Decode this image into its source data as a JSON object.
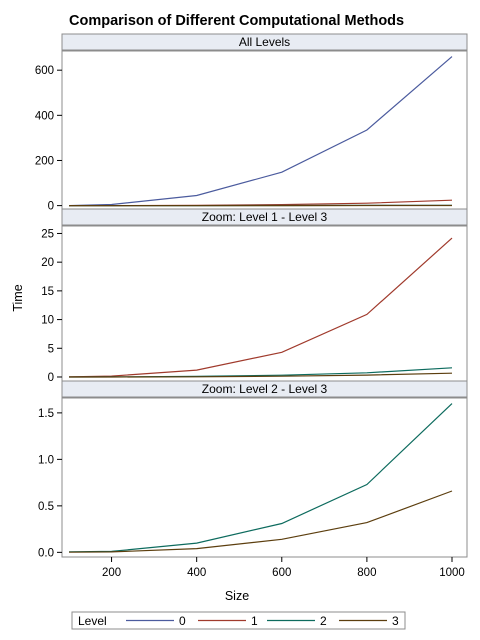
{
  "chart_data": {
    "type": "line",
    "title": "Comparison of Different Computational Methods",
    "xlabel": "Size",
    "ylabel": "Time",
    "x": [
      100,
      200,
      400,
      600,
      800,
      1000
    ],
    "xlim": [
      100,
      1000
    ],
    "xticks": [
      "200",
      "400",
      "600",
      "800",
      "1000"
    ],
    "xtick_values": [
      200,
      400,
      600,
      800,
      1000
    ],
    "grid": false,
    "colors": {
      "panel_border": "#8c8c8c",
      "header_fill": "#e8ecf3",
      "background": "#ffffff"
    },
    "series": [
      {
        "name": "0",
        "color": "#4b5b9e",
        "values": [
          0.1,
          5,
          45,
          148,
          335,
          660
        ]
      },
      {
        "name": "1",
        "color": "#a03a2c",
        "values": [
          0.02,
          0.15,
          1.2,
          4.3,
          10.9,
          24.2
        ]
      },
      {
        "name": "2",
        "color": "#0d6b5e",
        "values": [
          0.005,
          0.01,
          0.1,
          0.31,
          0.73,
          1.6
        ]
      },
      {
        "name": "3",
        "color": "#5c3e0e",
        "values": [
          0.002,
          0.005,
          0.04,
          0.14,
          0.32,
          0.66
        ]
      }
    ],
    "panels": [
      {
        "header": "All Levels",
        "series_indices": [
          0,
          1,
          2,
          3
        ],
        "ylim": [
          -15,
          685
        ],
        "yticks": [
          "0",
          "200",
          "400",
          "600"
        ],
        "ytick_values": [
          0,
          200,
          400,
          600
        ]
      },
      {
        "header": "Zoom: Level 1 - Level 3",
        "series_indices": [
          1,
          2,
          3
        ],
        "ylim": [
          -0.7,
          26.3
        ],
        "yticks": [
          "0",
          "5",
          "10",
          "15",
          "20",
          "25"
        ],
        "ytick_values": [
          0,
          5,
          10,
          15,
          20,
          25
        ]
      },
      {
        "header": "Zoom: Level 2 - Level 3",
        "series_indices": [
          2,
          3
        ],
        "ylim": [
          -0.05,
          1.66
        ],
        "yticks": [
          "0.0",
          "0.5",
          "1.0",
          "1.5"
        ],
        "ytick_values": [
          0,
          0.5,
          1.0,
          1.5
        ]
      }
    ],
    "legend": {
      "title": "Level",
      "position": "bottom-left",
      "entries": [
        "0",
        "1",
        "2",
        "3"
      ]
    }
  }
}
